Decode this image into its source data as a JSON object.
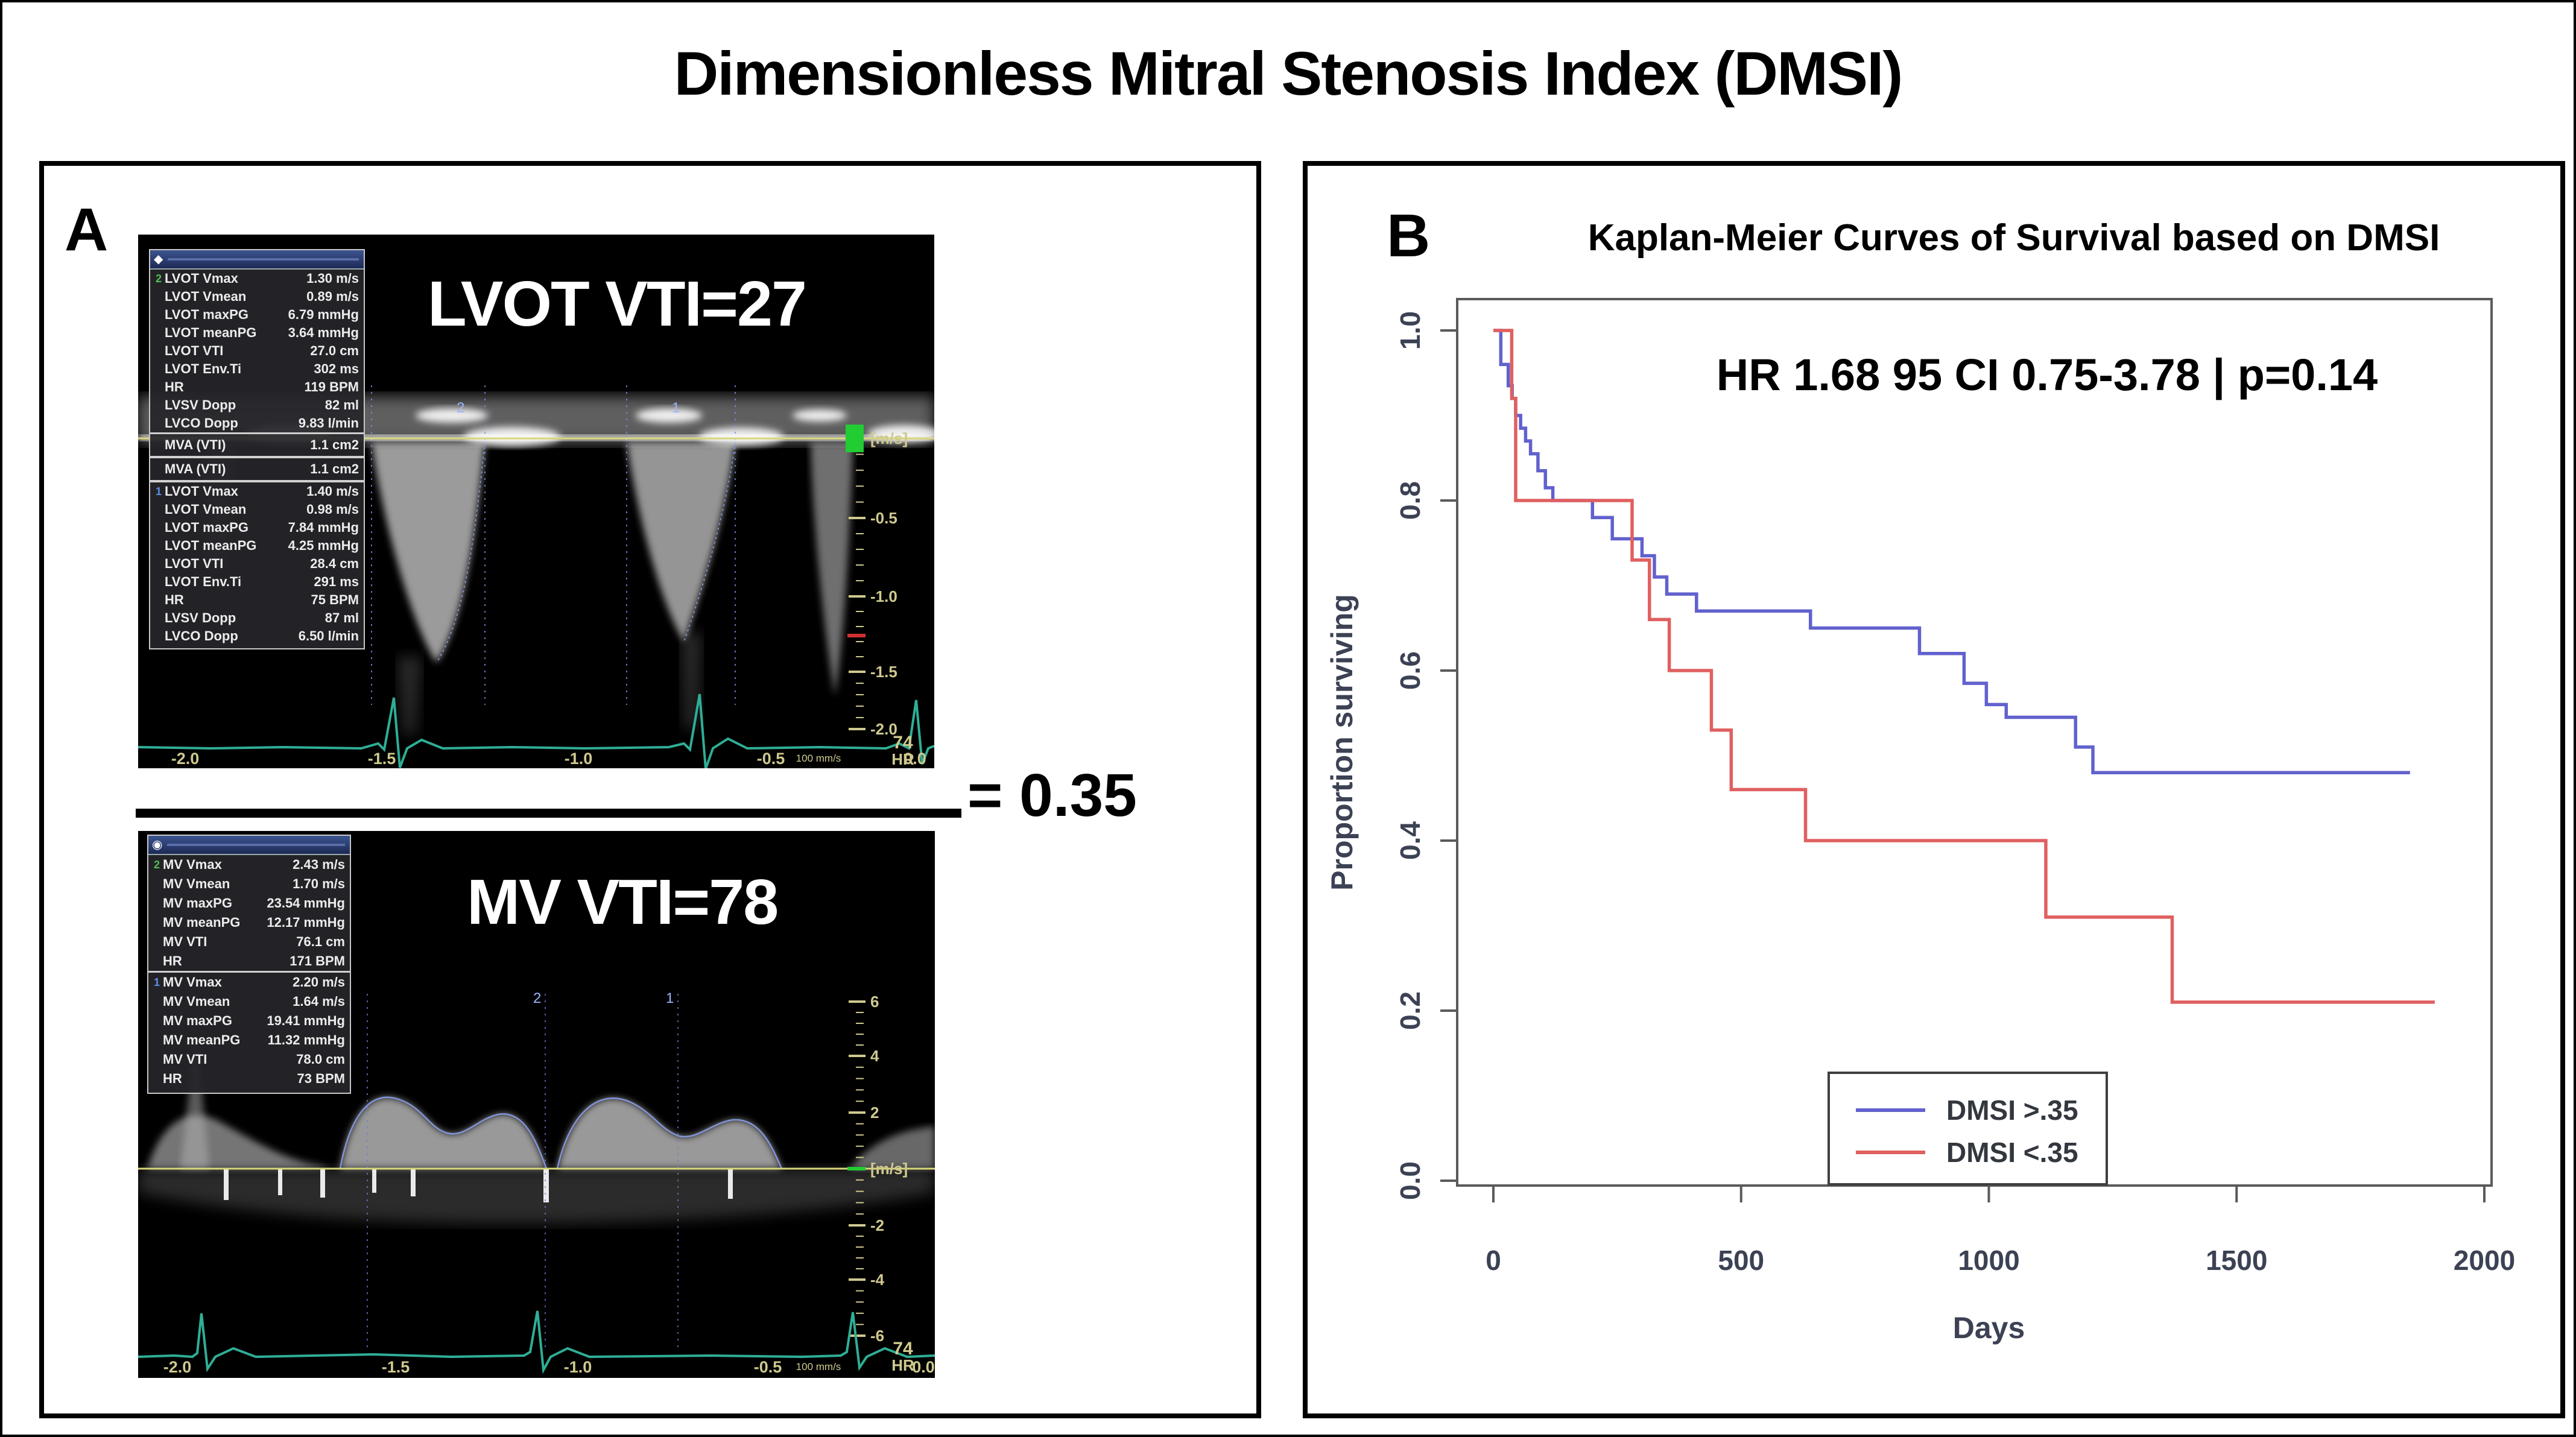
{
  "figure": {
    "title": "Dimensionless Mitral Stenosis Index  (DMSI)"
  },
  "panel_a": {
    "label": "A",
    "equals_text": "= 0.35",
    "top_image": {
      "overlay_title": "LVOT VTI=27",
      "section1_marker": "2",
      "section2_marker": "1",
      "measurements_1": [
        {
          "label": "LVOT Vmax",
          "value": "1.30 m/s"
        },
        {
          "label": "LVOT Vmean",
          "value": "0.89 m/s"
        },
        {
          "label": "LVOT maxPG",
          "value": "6.79 mmHg"
        },
        {
          "label": "LVOT meanPG",
          "value": "3.64 mmHg"
        },
        {
          "label": "LVOT VTI",
          "value": "27.0 cm"
        },
        {
          "label": "LVOT Env.Ti",
          "value": "302 ms"
        },
        {
          "label": "HR",
          "value": "119 BPM"
        },
        {
          "label": "LVSV Dopp",
          "value": "82 ml"
        },
        {
          "label": "LVCO Dopp",
          "value": "9.83 l/min"
        }
      ],
      "mva_rows": [
        {
          "label": "MVA (VTI)",
          "value": "1.1 cm2"
        },
        {
          "label": "MVA (VTI)",
          "value": "1.1 cm2"
        }
      ],
      "measurements_2": [
        {
          "label": "LVOT Vmax",
          "value": "1.40 m/s"
        },
        {
          "label": "LVOT Vmean",
          "value": "0.98 m/s"
        },
        {
          "label": "LVOT maxPG",
          "value": "7.84 mmHg"
        },
        {
          "label": "LVOT meanPG",
          "value": "4.25 mmHg"
        },
        {
          "label": "LVOT VTI",
          "value": "28.4 cm"
        },
        {
          "label": "LVOT Env.Ti",
          "value": "291 ms"
        },
        {
          "label": "HR",
          "value": "75 BPM"
        },
        {
          "label": "LVSV Dopp",
          "value": "87 ml"
        },
        {
          "label": "LVCO Dopp",
          "value": "6.50 l/min"
        }
      ],
      "scale_labels": [
        "[m/s]",
        "-0.5",
        "-1.0",
        "-1.5",
        "-2.0"
      ],
      "time_labels": [
        "-2.0",
        "-1.5",
        "-1.0",
        "-0.5",
        "0.0"
      ],
      "sweep_label": "100 mm/s",
      "hr_value": "74",
      "hr_unit": "HR",
      "cursor_marker_1": "2",
      "cursor_marker_2": "1"
    },
    "bottom_image": {
      "overlay_title": "MV VTI=78",
      "section1_marker": "2",
      "section2_marker": "1",
      "measurements_1": [
        {
          "label": "MV Vmax",
          "value": "2.43 m/s"
        },
        {
          "label": "MV Vmean",
          "value": "1.70 m/s"
        },
        {
          "label": "MV maxPG",
          "value": "23.54 mmHg"
        },
        {
          "label": "MV meanPG",
          "value": "12.17 mmHg"
        },
        {
          "label": "MV VTI",
          "value": "76.1 cm"
        },
        {
          "label": "HR",
          "value": "171 BPM"
        }
      ],
      "measurements_2": [
        {
          "label": "MV Vmax",
          "value": "2.20 m/s"
        },
        {
          "label": "MV Vmean",
          "value": "1.64 m/s"
        },
        {
          "label": "MV maxPG",
          "value": "19.41 mmHg"
        },
        {
          "label": "MV meanPG",
          "value": "11.32 mmHg"
        },
        {
          "label": "MV VTI",
          "value": "78.0 cm"
        },
        {
          "label": "HR",
          "value": "73 BPM"
        }
      ],
      "scale_labels": [
        "6",
        "4",
        "2",
        "[m/s]",
        "-2",
        "-4",
        "-6"
      ],
      "time_labels": [
        "-2.0",
        "-1.5",
        "-1.0",
        "-0.5",
        "0.0"
      ],
      "sweep_label": "100 mm/s",
      "hr_value": "74",
      "hr_unit": "HR",
      "cursor_marker_1": "2",
      "cursor_marker_2": "1"
    }
  },
  "panel_b": {
    "label": "B"
  },
  "chart_data": {
    "type": "line",
    "subtype": "kaplan-meier-step",
    "title": "Kaplan-Meier Curves of Survival based on DMSI",
    "annotation": "HR 1.68 95 CI 0.75-3.78 | p=0.14",
    "xlabel": "Days",
    "ylabel": "Proportion surviving",
    "xlim": [
      0,
      2000
    ],
    "ylim": [
      0.0,
      1.0
    ],
    "xticks": [
      0,
      500,
      1000,
      1500,
      2000
    ],
    "yticks": [
      0.0,
      0.2,
      0.4,
      0.6,
      0.8,
      1.0
    ],
    "grid": false,
    "legend_position": "bottom-center",
    "axis_color": "#5a5a5a",
    "series": [
      {
        "name": "DMSI >.35",
        "color": "#6161ce",
        "step": true,
        "points": [
          [
            0,
            1.0
          ],
          [
            15,
            0.96
          ],
          [
            30,
            0.935
          ],
          [
            38,
            0.92
          ],
          [
            45,
            0.9
          ],
          [
            55,
            0.885
          ],
          [
            65,
            0.87
          ],
          [
            75,
            0.855
          ],
          [
            90,
            0.835
          ],
          [
            105,
            0.815
          ],
          [
            120,
            0.8
          ],
          [
            200,
            0.78
          ],
          [
            240,
            0.755
          ],
          [
            300,
            0.735
          ],
          [
            325,
            0.71
          ],
          [
            350,
            0.69
          ],
          [
            410,
            0.67
          ],
          [
            640,
            0.65
          ],
          [
            860,
            0.62
          ],
          [
            950,
            0.585
          ],
          [
            995,
            0.56
          ],
          [
            1035,
            0.545
          ],
          [
            1175,
            0.51
          ],
          [
            1210,
            0.48
          ],
          [
            1850,
            0.48
          ]
        ]
      },
      {
        "name": "DMSI <.35",
        "color": "#e06060",
        "step": true,
        "points": [
          [
            0,
            1.0
          ],
          [
            37,
            0.92
          ],
          [
            45,
            0.8
          ],
          [
            280,
            0.73
          ],
          [
            315,
            0.66
          ],
          [
            355,
            0.6
          ],
          [
            440,
            0.53
          ],
          [
            480,
            0.46
          ],
          [
            630,
            0.4
          ],
          [
            1115,
            0.31
          ],
          [
            1370,
            0.21
          ],
          [
            1900,
            0.21
          ]
        ]
      }
    ]
  }
}
